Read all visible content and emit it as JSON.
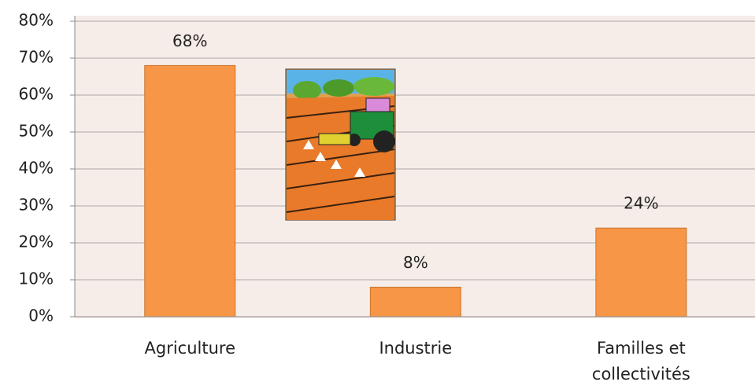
{
  "chart_data": {
    "type": "bar",
    "categories": [
      "Agriculture",
      "Industrie",
      "Familles et collectivités"
    ],
    "values": [
      68,
      8,
      24
    ],
    "value_labels": [
      "68%",
      "8%",
      "24%"
    ],
    "color": "#f79646",
    "ylim": [
      0,
      80
    ],
    "yticks": [
      {
        "value": 0,
        "label": "0%"
      },
      {
        "value": 10,
        "label": "10%"
      },
      {
        "value": 20,
        "label": "20%"
      },
      {
        "value": 30,
        "label": "30%"
      },
      {
        "value": 40,
        "label": "40%"
      },
      {
        "value": 50,
        "label": "50%"
      },
      {
        "value": 60,
        "label": "60%"
      },
      {
        "value": 70,
        "label": "70%"
      },
      {
        "value": 80,
        "label": "80%"
      }
    ],
    "grid": true
  }
}
